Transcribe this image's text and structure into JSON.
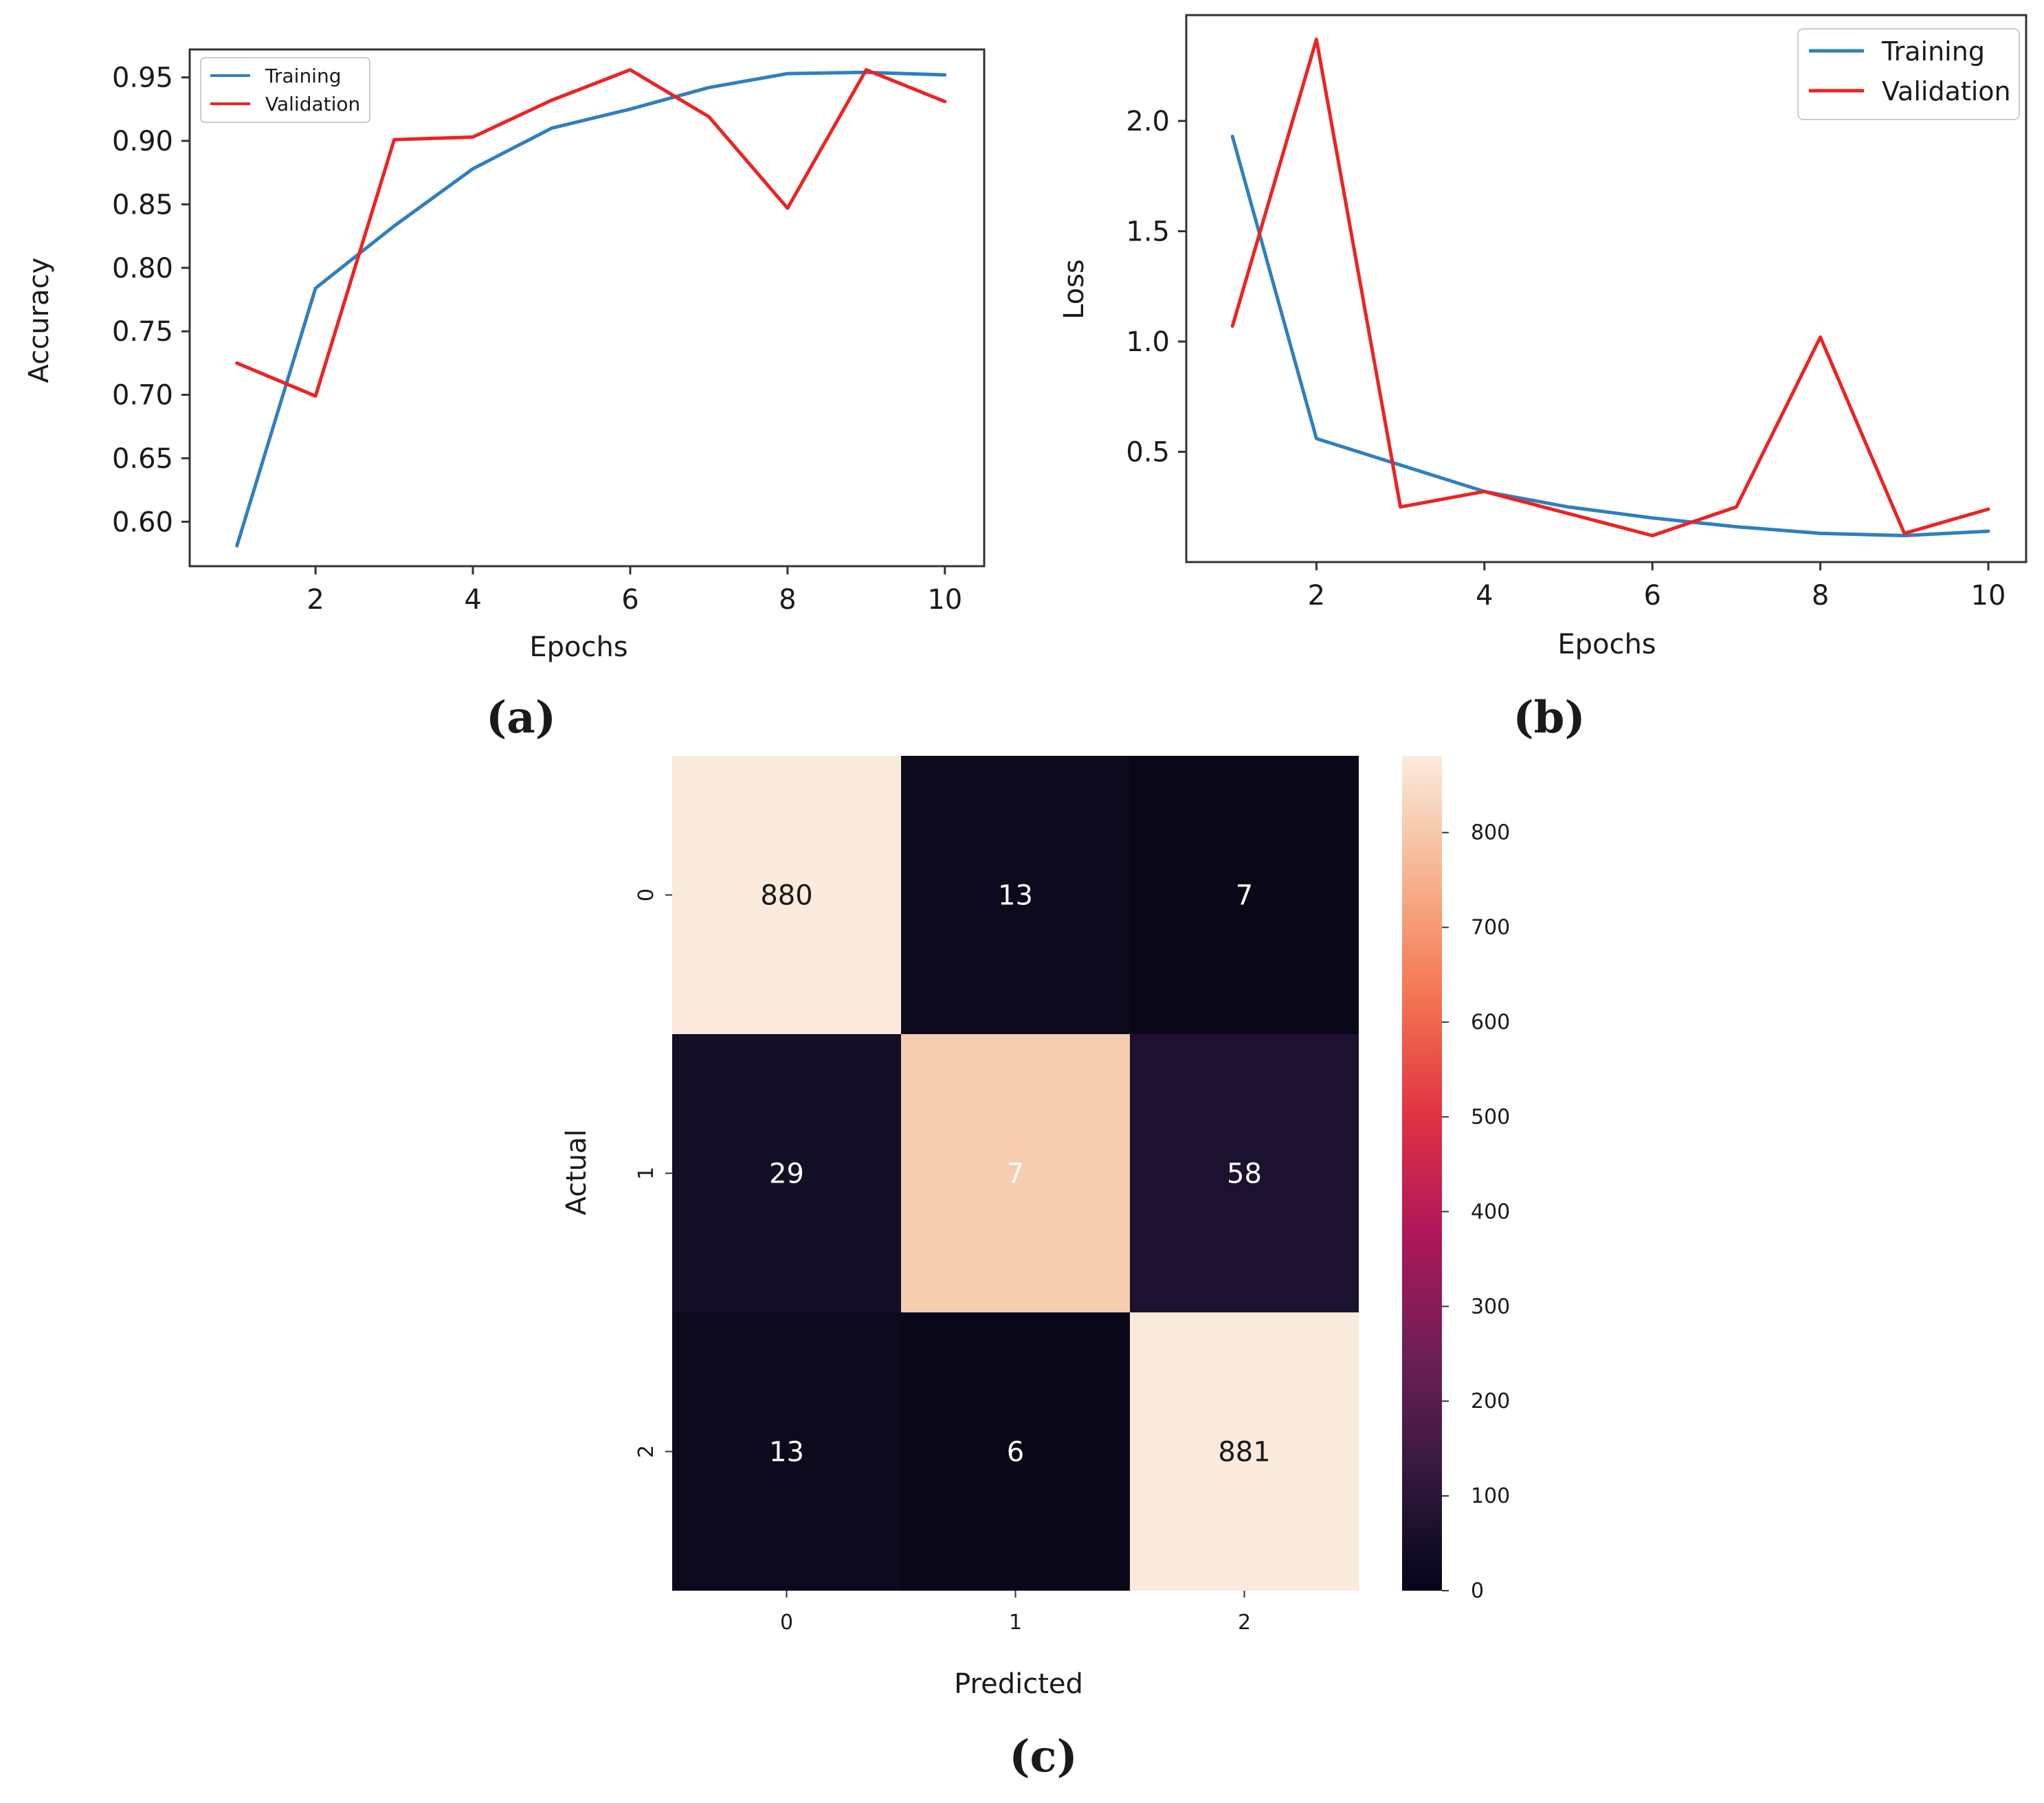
{
  "panels": {
    "a": "(a)",
    "b": "(b)",
    "c": "(c)"
  },
  "colors": {
    "training": "#2f7fbf",
    "validation": "#ee2222",
    "axis": "#333333"
  },
  "chart_data": [
    {
      "type": "line",
      "panel": "a",
      "title": "",
      "xlabel": "Epochs",
      "ylabel": "Accuracy",
      "x": [
        1,
        2,
        3,
        4,
        5,
        6,
        7,
        8,
        9,
        10
      ],
      "xlim": [
        0.4,
        10.5
      ],
      "ylim": [
        0.565,
        0.972
      ],
      "xticks": [
        "2",
        "4",
        "6",
        "8",
        "10"
      ],
      "xtick_values": [
        2,
        4,
        6,
        8,
        10
      ],
      "yticks": [
        "0.60",
        "0.65",
        "0.70",
        "0.75",
        "0.80",
        "0.85",
        "0.90",
        "0.95"
      ],
      "ytick_values": [
        0.6,
        0.65,
        0.7,
        0.75,
        0.8,
        0.85,
        0.9,
        0.95
      ],
      "legend_position": "top-left",
      "series": [
        {
          "name": "Training",
          "color": "#2f7fbf",
          "values": [
            0.581,
            0.784,
            0.833,
            0.878,
            0.91,
            0.925,
            0.942,
            0.953,
            0.954,
            0.952
          ]
        },
        {
          "name": "Validation",
          "color": "#ee2222",
          "values": [
            0.725,
            0.699,
            0.901,
            0.903,
            0.932,
            0.956,
            0.919,
            0.847,
            0.956,
            0.931
          ]
        }
      ]
    },
    {
      "type": "line",
      "panel": "b",
      "title": "",
      "xlabel": "Epochs",
      "ylabel": "Loss",
      "x": [
        1,
        2,
        3,
        4,
        5,
        6,
        7,
        8,
        9,
        10
      ],
      "xlim": [
        0.45,
        10.45
      ],
      "ylim": [
        0.0,
        2.48
      ],
      "xticks": [
        "2",
        "4",
        "6",
        "8",
        "10"
      ],
      "xtick_values": [
        2,
        4,
        6,
        8,
        10
      ],
      "yticks": [
        "0.5",
        "1.0",
        "1.5",
        "2.0"
      ],
      "ytick_values": [
        0.5,
        1.0,
        1.5,
        2.0
      ],
      "legend_position": "top-right",
      "series": [
        {
          "name": "Training",
          "color": "#2f7fbf",
          "values": [
            1.93,
            0.56,
            0.44,
            0.32,
            0.25,
            0.2,
            0.16,
            0.13,
            0.12,
            0.14
          ]
        },
        {
          "name": "Validation",
          "color": "#ee2222",
          "values": [
            1.07,
            2.37,
            0.25,
            0.32,
            0.22,
            0.12,
            0.25,
            1.02,
            0.13,
            0.24
          ]
        }
      ]
    },
    {
      "type": "heatmap",
      "panel": "c",
      "title": "",
      "xlabel": "Predicted",
      "ylabel": "Actual",
      "xticks": [
        "0",
        "1",
        "2"
      ],
      "yticks": [
        "0",
        "1",
        "2"
      ],
      "matrix": [
        [
          880,
          13,
          7
        ],
        [
          29,
          7,
          58
        ],
        [
          13,
          6,
          881
        ]
      ],
      "cell_colors": [
        [
          "#faeadb",
          "#0c0a1c",
          "#0a0818"
        ],
        [
          "#140e26",
          "#f6cdb1",
          "#1c1230"
        ],
        [
          "#0c0a1c",
          "#0a0818",
          "#faeadb"
        ]
      ],
      "colorbar": {
        "min": 0,
        "max": 881,
        "ticks": [
          "0",
          "100",
          "200",
          "300",
          "400",
          "500",
          "600",
          "700",
          "800"
        ],
        "tick_values": [
          0,
          100,
          200,
          300,
          400,
          500,
          600,
          700,
          800
        ],
        "colors": [
          "#03051a",
          "#35193e",
          "#701f57",
          "#ae1759",
          "#e13342",
          "#f37651",
          "#f6b48f",
          "#faebdd"
        ]
      }
    }
  ]
}
